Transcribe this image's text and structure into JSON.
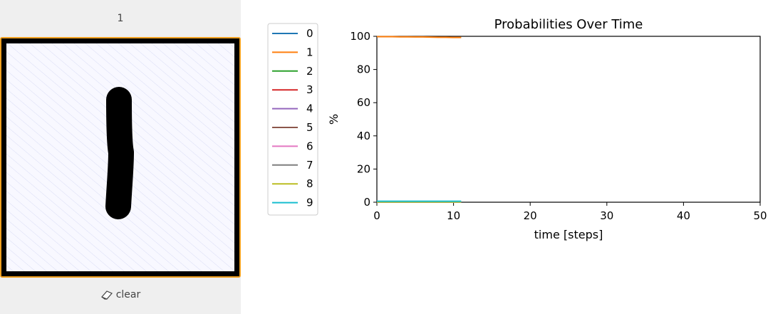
{
  "drawing_widget": {
    "prediction_label": "1",
    "clear_label": "clear",
    "clear_icon": "eraser-icon",
    "accent_color": "#f0a020",
    "background_color": "#efefef"
  },
  "chart_data": {
    "type": "line",
    "title": "Probabilities Over Time",
    "xlabel": "time [steps]",
    "ylabel": "%",
    "xlim": [
      0,
      50
    ],
    "ylim": [
      0,
      100
    ],
    "xticks": [
      0,
      10,
      20,
      30,
      40,
      50
    ],
    "yticks": [
      0,
      20,
      40,
      60,
      80,
      100
    ],
    "grid": false,
    "legend_position": "left-outside",
    "x": [
      0,
      1,
      2,
      3,
      4,
      5,
      6,
      7,
      8,
      9,
      10,
      11
    ],
    "series": [
      {
        "name": "0",
        "color": "#1f77b4",
        "values": [
          0,
          0,
          0,
          0,
          0,
          0,
          0,
          0,
          0,
          0,
          0,
          0
        ]
      },
      {
        "name": "1",
        "color": "#ff7f0e",
        "values": [
          99.8,
          99.8,
          99.8,
          99.7,
          99.7,
          99.6,
          99.6,
          99.5,
          99.4,
          99.4,
          99.3,
          99.3
        ]
      },
      {
        "name": "2",
        "color": "#2ca02c",
        "values": [
          0,
          0,
          0,
          0,
          0,
          0,
          0,
          0,
          0,
          0,
          0,
          0
        ]
      },
      {
        "name": "3",
        "color": "#d62728",
        "values": [
          0,
          0,
          0,
          0,
          0,
          0,
          0,
          0,
          0,
          0,
          0,
          0
        ]
      },
      {
        "name": "4",
        "color": "#9467bd",
        "values": [
          0.1,
          0.1,
          0.1,
          0.1,
          0.1,
          0.1,
          0.1,
          0.1,
          0.1,
          0.1,
          0.1,
          0.1
        ]
      },
      {
        "name": "5",
        "color": "#8c564b",
        "values": [
          0,
          0,
          0,
          0,
          0,
          0,
          0,
          0,
          0,
          0,
          0,
          0
        ]
      },
      {
        "name": "6",
        "color": "#e377c2",
        "values": [
          0,
          0,
          0,
          0,
          0,
          0,
          0,
          0,
          0,
          0,
          0,
          0
        ]
      },
      {
        "name": "7",
        "color": "#7f7f7f",
        "values": [
          0.1,
          0.1,
          0.1,
          0.1,
          0.1,
          0.1,
          0.1,
          0.1,
          0.1,
          0.1,
          0.1,
          0.1
        ]
      },
      {
        "name": "8",
        "color": "#bcbd22",
        "values": [
          0.1,
          0.1,
          0.1,
          0.1,
          0.1,
          0.1,
          0.1,
          0.1,
          0.1,
          0.1,
          0.1,
          0.1
        ]
      },
      {
        "name": "9",
        "color": "#17becf",
        "values": [
          0.6,
          0.6,
          0.6,
          0.6,
          0.6,
          0.6,
          0.6,
          0.6,
          0.6,
          0.6,
          0.6,
          0.6
        ]
      }
    ]
  }
}
